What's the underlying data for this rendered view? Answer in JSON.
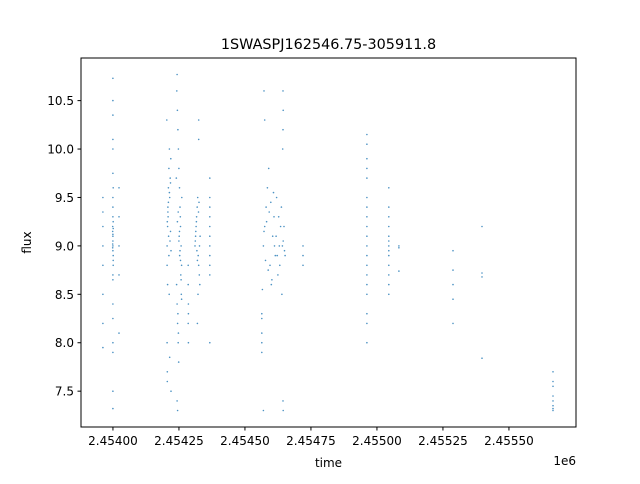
{
  "chart_data": {
    "type": "scatter",
    "title": "1SWASPJ162546.75-305911.8",
    "xlabel": "time",
    "ylabel": "flux",
    "x_offset_label": "1e6",
    "xlim": [
      2453879,
      2455754
    ],
    "ylim": [
      7.13,
      10.94
    ],
    "x_ticks": [
      {
        "value": 2454000,
        "label": "2.45400"
      },
      {
        "value": 2454250,
        "label": "2.45425"
      },
      {
        "value": 2454500,
        "label": "2.45450"
      },
      {
        "value": 2454750,
        "label": "2.45475"
      },
      {
        "value": 2455000,
        "label": "2.45500"
      },
      {
        "value": 2455250,
        "label": "2.45525"
      },
      {
        "value": 2455500,
        "label": "2.45550"
      }
    ],
    "y_ticks": [
      {
        "value": 7.5,
        "label": "7.5"
      },
      {
        "value": 8.0,
        "label": "8.0"
      },
      {
        "value": 8.5,
        "label": "8.5"
      },
      {
        "value": 9.0,
        "label": "9.0"
      },
      {
        "value": 9.5,
        "label": "9.5"
      },
      {
        "value": 10.0,
        "label": "10.0"
      },
      {
        "value": 10.5,
        "label": "10.5"
      }
    ],
    "grid": false,
    "color": "#1f77b4",
    "points": [
      [
        2453962,
        9.5
      ],
      [
        2453962,
        9.2
      ],
      [
        2453962,
        8.8
      ],
      [
        2453962,
        8.5
      ],
      [
        2453962,
        8.2
      ],
      [
        2453962,
        9.35
      ],
      [
        2453962,
        7.95
      ],
      [
        2453962,
        9.0
      ],
      [
        2454000,
        9.0
      ],
      [
        2454000,
        9.1
      ],
      [
        2454001,
        8.9
      ],
      [
        2453999,
        9.2
      ],
      [
        2454000,
        9.3
      ],
      [
        2454001,
        8.8
      ],
      [
        2454000,
        9.05
      ],
      [
        2453999,
        9.15
      ],
      [
        2454000,
        8.95
      ],
      [
        2454001,
        9.25
      ],
      [
        2454000,
        9.4
      ],
      [
        2454000,
        8.7
      ],
      [
        2454000,
        9.5
      ],
      [
        2454001,
        9.6
      ],
      [
        2454000,
        8.65
      ],
      [
        2454000,
        10.73
      ],
      [
        2454000,
        10.5
      ],
      [
        2454000,
        10.35
      ],
      [
        2454000,
        10.1
      ],
      [
        2454000,
        10.0
      ],
      [
        2454000,
        9.75
      ],
      [
        2454000,
        7.32
      ],
      [
        2454000,
        7.5
      ],
      [
        2454000,
        7.9
      ],
      [
        2454000,
        8.0
      ],
      [
        2454000,
        8.25
      ],
      [
        2454000,
        8.4
      ],
      [
        2454000,
        9.12
      ],
      [
        2454001,
        8.85
      ],
      [
        2453999,
        9.02
      ],
      [
        2454001,
        9.18
      ],
      [
        2453999,
        8.98
      ],
      [
        2454023,
        9.6
      ],
      [
        2454023,
        9.3
      ],
      [
        2454023,
        9.0
      ],
      [
        2454023,
        8.7
      ],
      [
        2454023,
        8.1
      ],
      [
        2454205,
        9.0
      ],
      [
        2454207,
        9.2
      ],
      [
        2454208,
        9.4
      ],
      [
        2454210,
        9.6
      ],
      [
        2454212,
        9.8
      ],
      [
        2454214,
        10.0
      ],
      [
        2454205,
        8.8
      ],
      [
        2454207,
        8.6
      ],
      [
        2454209,
        9.3
      ],
      [
        2454211,
        9.1
      ],
      [
        2454213,
        8.5
      ],
      [
        2454215,
        9.5
      ],
      [
        2454217,
        9.7
      ],
      [
        2454219,
        9.9
      ],
      [
        2454206,
        9.25
      ],
      [
        2454208,
        9.35
      ],
      [
        2454210,
        9.45
      ],
      [
        2454212,
        8.9
      ],
      [
        2454216,
        9.05
      ],
      [
        2454218,
        9.15
      ],
      [
        2454220,
        8.95
      ],
      [
        2454214,
        9.55
      ],
      [
        2454218,
        9.65
      ],
      [
        2454205,
        8.0
      ],
      [
        2454206,
        7.7
      ],
      [
        2454206,
        7.6
      ],
      [
        2454215,
        7.85
      ],
      [
        2454220,
        7.5
      ],
      [
        2454204,
        10.3
      ],
      [
        2454243,
        10.77
      ],
      [
        2454242,
        10.6
      ],
      [
        2454244,
        10.4
      ],
      [
        2454246,
        10.2
      ],
      [
        2454248,
        10.0
      ],
      [
        2454250,
        9.8
      ],
      [
        2454252,
        9.6
      ],
      [
        2454254,
        9.4
      ],
      [
        2454256,
        9.2
      ],
      [
        2454258,
        9.0
      ],
      [
        2454260,
        8.8
      ],
      [
        2454241,
        8.6
      ],
      [
        2454243,
        8.4
      ],
      [
        2454245,
        8.2
      ],
      [
        2454247,
        8.0
      ],
      [
        2454249,
        7.8
      ],
      [
        2454243,
        7.4
      ],
      [
        2454245,
        7.3
      ],
      [
        2454251,
        9.1
      ],
      [
        2454253,
        8.9
      ],
      [
        2454255,
        9.3
      ],
      [
        2454257,
        8.7
      ],
      [
        2454259,
        8.5
      ],
      [
        2454261,
        9.5
      ],
      [
        2454240,
        9.7
      ],
      [
        2454246,
        8.3
      ],
      [
        2454248,
        8.1
      ],
      [
        2454250,
        9.05
      ],
      [
        2454252,
        9.15
      ],
      [
        2454254,
        8.95
      ],
      [
        2454256,
        8.85
      ],
      [
        2454244,
        9.25
      ],
      [
        2454247,
        9.35
      ],
      [
        2454258,
        8.65
      ],
      [
        2454260,
        8.45
      ],
      [
        2454285,
        8.6
      ],
      [
        2454286,
        8.4
      ],
      [
        2454285,
        8.2
      ],
      [
        2454286,
        8.0
      ],
      [
        2454285,
        8.8
      ],
      [
        2454286,
        8.3
      ],
      [
        2454311,
        9.0
      ],
      [
        2454313,
        9.1
      ],
      [
        2454315,
        9.2
      ],
      [
        2454317,
        9.3
      ],
      [
        2454319,
        9.4
      ],
      [
        2454321,
        9.5
      ],
      [
        2454323,
        8.9
      ],
      [
        2454325,
        8.8
      ],
      [
        2454327,
        8.7
      ],
      [
        2454329,
        8.6
      ],
      [
        2454312,
        9.05
      ],
      [
        2454314,
        9.15
      ],
      [
        2454316,
        9.25
      ],
      [
        2454318,
        8.95
      ],
      [
        2454320,
        8.85
      ],
      [
        2454322,
        8.5
      ],
      [
        2454324,
        9.35
      ],
      [
        2454326,
        9.45
      ],
      [
        2454328,
        9.0
      ],
      [
        2454330,
        9.1
      ],
      [
        2454325,
        10.3
      ],
      [
        2454325,
        10.1
      ],
      [
        2454320,
        8.2
      ],
      [
        2454367,
        9.7
      ],
      [
        2454367,
        9.5
      ],
      [
        2454367,
        9.3
      ],
      [
        2454367,
        9.1
      ],
      [
        2454367,
        9.0
      ],
      [
        2454367,
        8.9
      ],
      [
        2454367,
        8.8
      ],
      [
        2454367,
        8.7
      ],
      [
        2454367,
        9.2
      ],
      [
        2454367,
        9.4
      ],
      [
        2454367,
        8.0
      ],
      [
        2454564,
        8.3
      ],
      [
        2454564,
        8.1
      ],
      [
        2454564,
        8.0
      ],
      [
        2454564,
        7.9
      ],
      [
        2454564,
        8.25
      ],
      [
        2454566,
        8.55
      ],
      [
        2454570,
        9.0
      ],
      [
        2454575,
        9.2
      ],
      [
        2454580,
        9.4
      ],
      [
        2454585,
        9.6
      ],
      [
        2454590,
        9.8
      ],
      [
        2454595,
        8.8
      ],
      [
        2454600,
        8.6
      ],
      [
        2454605,
        9.1
      ],
      [
        2454610,
        9.3
      ],
      [
        2454615,
        8.9
      ],
      [
        2454620,
        9.5
      ],
      [
        2454625,
        8.7
      ],
      [
        2454630,
        9.0
      ],
      [
        2454635,
        9.2
      ],
      [
        2454640,
        8.5
      ],
      [
        2454645,
        9.05
      ],
      [
        2454650,
        8.95
      ],
      [
        2454572,
        9.15
      ],
      [
        2454578,
        8.85
      ],
      [
        2454582,
        9.25
      ],
      [
        2454588,
        8.75
      ],
      [
        2454592,
        9.35
      ],
      [
        2454598,
        9.45
      ],
      [
        2454602,
        8.65
      ],
      [
        2454608,
        9.55
      ],
      [
        2454612,
        9.0
      ],
      [
        2454618,
        9.1
      ],
      [
        2454622,
        8.9
      ],
      [
        2454628,
        9.3
      ],
      [
        2454632,
        8.8
      ],
      [
        2454638,
        9.4
      ],
      [
        2454642,
        9.0
      ],
      [
        2454648,
        9.2
      ],
      [
        2454652,
        8.9
      ],
      [
        2454572,
        10.6
      ],
      [
        2454575,
        10.3
      ],
      [
        2454570,
        7.3
      ],
      [
        2454644,
        10.6
      ],
      [
        2454645,
        10.4
      ],
      [
        2454644,
        10.2
      ],
      [
        2454643,
        10.0
      ],
      [
        2454644,
        7.4
      ],
      [
        2454645,
        7.3
      ],
      [
        2454720,
        9.0
      ],
      [
        2454720,
        8.9
      ],
      [
        2454720,
        8.8
      ],
      [
        2454962,
        10.15
      ],
      [
        2454962,
        10.05
      ],
      [
        2454962,
        9.9
      ],
      [
        2454962,
        9.8
      ],
      [
        2454962,
        9.7
      ],
      [
        2454962,
        9.5
      ],
      [
        2454962,
        9.4
      ],
      [
        2454962,
        9.3
      ],
      [
        2454962,
        9.2
      ],
      [
        2454962,
        9.1
      ],
      [
        2454962,
        9.0
      ],
      [
        2454962,
        8.9
      ],
      [
        2454962,
        8.8
      ],
      [
        2454962,
        8.7
      ],
      [
        2454962,
        8.6
      ],
      [
        2454962,
        8.5
      ],
      [
        2454962,
        8.3
      ],
      [
        2454962,
        8.2
      ],
      [
        2454962,
        8.0
      ],
      [
        2455045,
        9.6
      ],
      [
        2455045,
        9.4
      ],
      [
        2455045,
        9.3
      ],
      [
        2455045,
        9.2
      ],
      [
        2455045,
        9.1
      ],
      [
        2455045,
        9.05
      ],
      [
        2455045,
        9.0
      ],
      [
        2455045,
        8.95
      ],
      [
        2455045,
        8.9
      ],
      [
        2455045,
        8.8
      ],
      [
        2455045,
        8.7
      ],
      [
        2455045,
        8.6
      ],
      [
        2455045,
        8.5
      ],
      [
        2455083,
        9.0
      ],
      [
        2455083,
        8.98
      ],
      [
        2455083,
        8.74
      ],
      [
        2455288,
        8.95
      ],
      [
        2455288,
        8.75
      ],
      [
        2455288,
        8.6
      ],
      [
        2455288,
        8.45
      ],
      [
        2455288,
        8.2
      ],
      [
        2455398,
        9.2
      ],
      [
        2455398,
        8.72
      ],
      [
        2455398,
        8.68
      ],
      [
        2455398,
        7.84
      ],
      [
        2455667,
        7.7
      ],
      [
        2455667,
        7.6
      ],
      [
        2455667,
        7.55
      ],
      [
        2455667,
        7.45
      ],
      [
        2455667,
        7.4
      ],
      [
        2455667,
        7.35
      ],
      [
        2455667,
        7.32
      ],
      [
        2455667,
        7.3
      ]
    ]
  }
}
